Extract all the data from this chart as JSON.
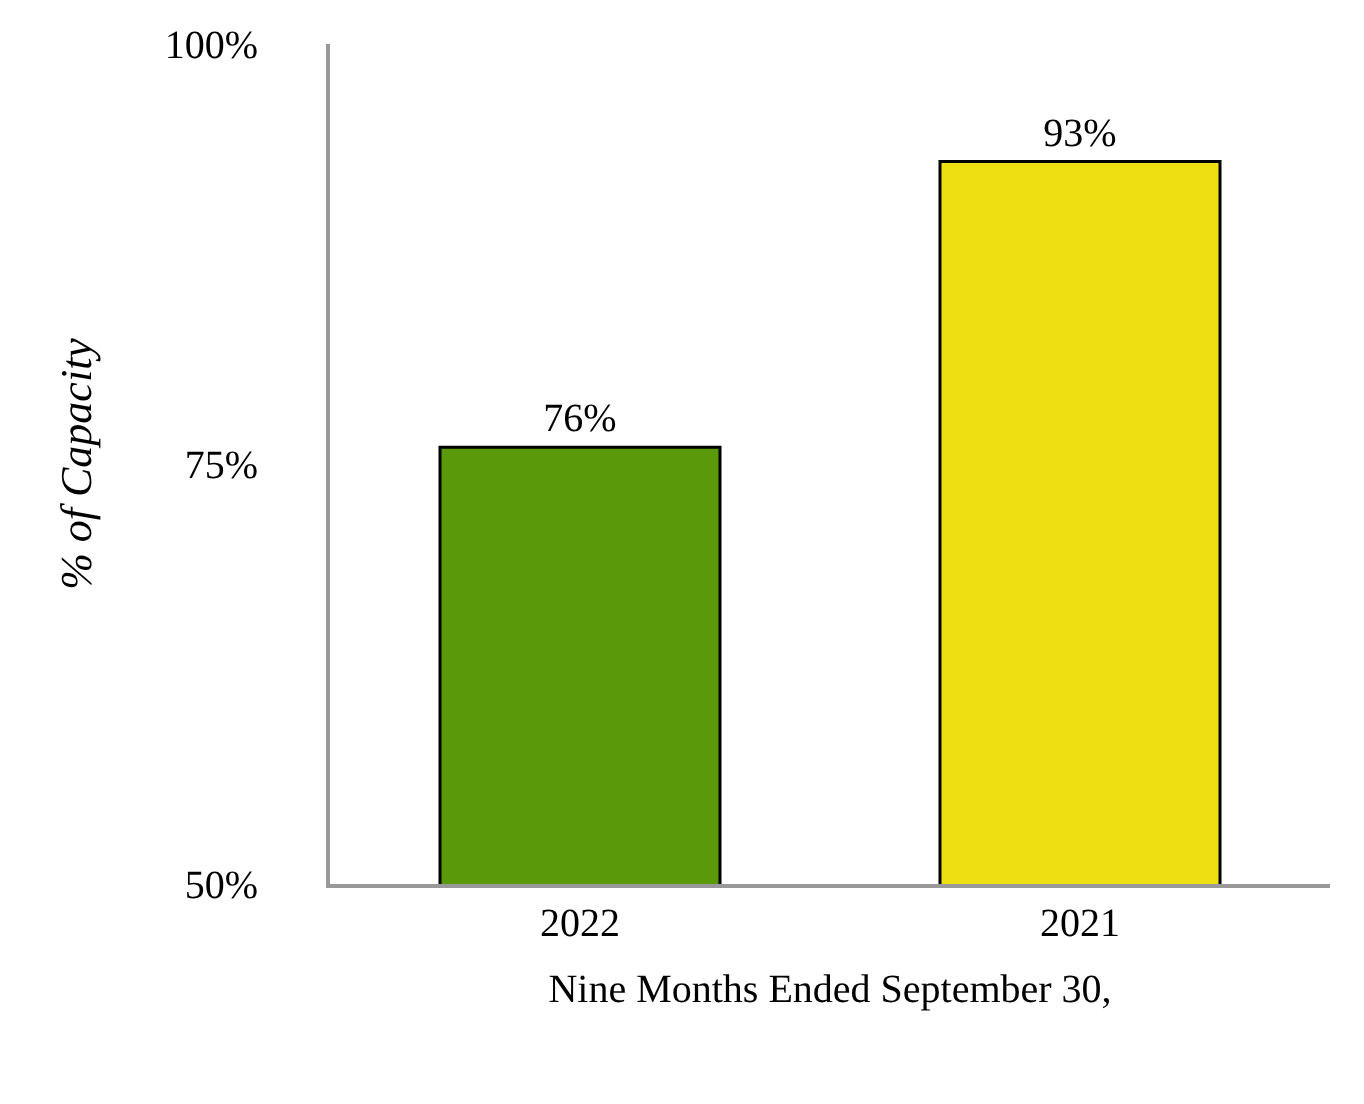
{
  "chart_data": {
    "type": "bar",
    "xlabel": "Nine Months Ended September 30,",
    "ylabel": "% of Capacity",
    "categories": [
      "2022",
      "2021"
    ],
    "values": [
      76,
      93
    ],
    "colors": [
      "#5a9a0a",
      "#eedf12"
    ],
    "value_labels": [
      "76%",
      "93%"
    ],
    "ylim": [
      50,
      100
    ],
    "yticks": [
      {
        "value": 50,
        "label": "50%"
      },
      {
        "value": 75,
        "label": "75%"
      },
      {
        "value": 100,
        "label": "100%"
      }
    ]
  }
}
